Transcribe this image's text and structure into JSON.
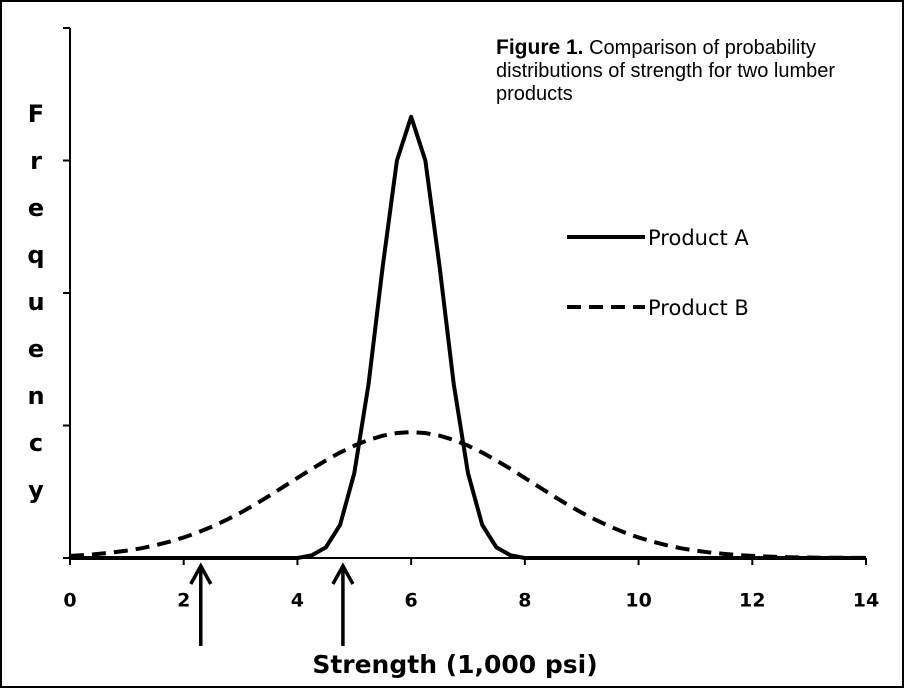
{
  "chart_data": {
    "type": "line",
    "figure_label": "Figure 1.",
    "title": "Comparison of probability distributions of strength for two lumber products",
    "x_label": "Strength (1,000 psi)",
    "y_label": "Frequency",
    "x": [
      0,
      0.25,
      0.5,
      0.75,
      1,
      1.25,
      1.5,
      1.75,
      2,
      2.25,
      2.5,
      2.75,
      3,
      3.25,
      3.5,
      3.75,
      4,
      4.25,
      4.5,
      4.75,
      5,
      5.25,
      5.5,
      5.75,
      6,
      6.25,
      6.5,
      6.75,
      7,
      7.25,
      7.5,
      7.75,
      8,
      8.25,
      8.5,
      8.75,
      9,
      9.25,
      9.5,
      9.75,
      10,
      10.25,
      10.5,
      10.75,
      11,
      11.25,
      11.5,
      11.75,
      12,
      12.25,
      12.5,
      12.75,
      13,
      13.25,
      13.5,
      13.75,
      14
    ],
    "series": [
      {
        "name": "Product A",
        "color": "#000000",
        "dash": false,
        "values": [
          0,
          0,
          0,
          0,
          0,
          0,
          0,
          0,
          0,
          0,
          0,
          0,
          0,
          0,
          0,
          0,
          0,
          0.02,
          0.08,
          0.25,
          0.64,
          1.31,
          2.2,
          3.0,
          3.33,
          3.0,
          2.2,
          1.31,
          0.64,
          0.25,
          0.08,
          0.02,
          0,
          0,
          0,
          0,
          0,
          0,
          0,
          0,
          0,
          0,
          0,
          0,
          0,
          0,
          0,
          0,
          0,
          0,
          0,
          0,
          0,
          0,
          0,
          0,
          0
        ]
      },
      {
        "name": "Product B",
        "color": "#000000",
        "dash": true,
        "values": [
          0.016,
          0.022,
          0.031,
          0.042,
          0.056,
          0.073,
          0.096,
          0.123,
          0.155,
          0.193,
          0.237,
          0.287,
          0.342,
          0.403,
          0.468,
          0.536,
          0.604,
          0.672,
          0.736,
          0.796,
          0.848,
          0.891,
          0.923,
          0.943,
          0.95,
          0.943,
          0.923,
          0.891,
          0.848,
          0.796,
          0.736,
          0.672,
          0.604,
          0.536,
          0.468,
          0.403,
          0.342,
          0.287,
          0.237,
          0.193,
          0.155,
          0.123,
          0.096,
          0.073,
          0.056,
          0.042,
          0.031,
          0.022,
          0.016,
          0.011,
          0.008,
          0.005,
          0.004,
          0.002,
          0.002,
          0.001,
          0.001
        ]
      }
    ],
    "xlim": [
      0,
      14
    ],
    "xticks": [
      0,
      2,
      4,
      6,
      8,
      10,
      12,
      14
    ],
    "ylim": [
      0,
      4
    ],
    "yticks": [
      0,
      1,
      2,
      3,
      4
    ],
    "arrow_x": [
      2.3,
      4.8
    ],
    "grid": false
  }
}
